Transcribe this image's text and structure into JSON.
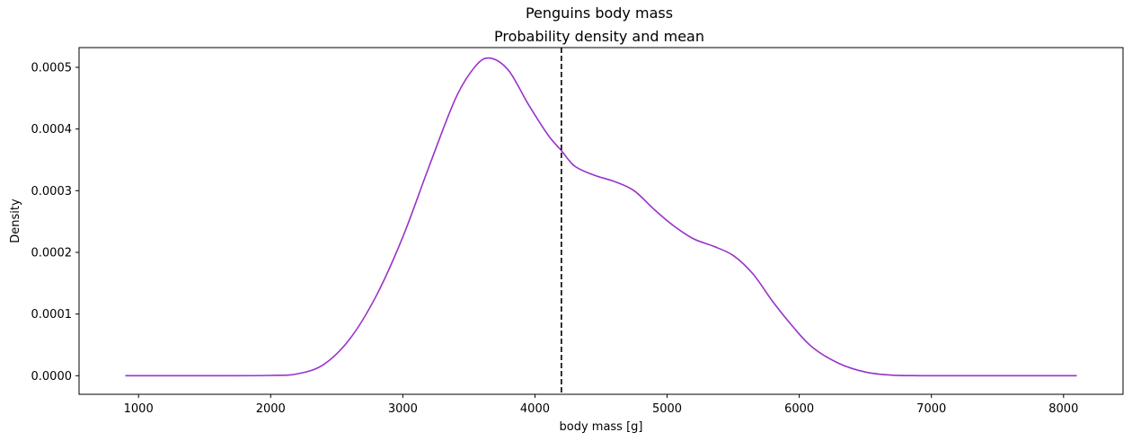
{
  "chart_data": {
    "type": "line",
    "title": "Penguins body mass",
    "subtitle": "Probability density and mean",
    "xlabel": "body mass [g]",
    "ylabel": "Density",
    "xlim": [
      550,
      8450
    ],
    "ylim": [
      -3.01e-05,
      0.000532
    ],
    "xticks": [
      1000,
      2000,
      3000,
      4000,
      5000,
      6000,
      7000,
      8000
    ],
    "xtick_labels": [
      "1000",
      "2000",
      "3000",
      "4000",
      "5000",
      "6000",
      "7000",
      "8000"
    ],
    "yticks": [
      0,
      0.0001,
      0.0002,
      0.0003,
      0.0004,
      0.0005
    ],
    "ytick_labels": [
      "0.0000",
      "0.0001",
      "0.0002",
      "0.0003",
      "0.0004",
      "0.0005"
    ],
    "grid": false,
    "colors": {
      "density": "#9932cc",
      "mean": "#000000"
    },
    "series": [
      {
        "style": "solid",
        "x": [
          900,
          1500,
          2000,
          2200,
          2400,
          2600,
          2800,
          3000,
          3200,
          3400,
          3550,
          3660,
          3800,
          3950,
          4100,
          4200,
          4300,
          4450,
          4600,
          4750,
          4900,
          5050,
          5200,
          5350,
          5500,
          5650,
          5800,
          5950,
          6100,
          6300,
          6500,
          6700,
          7000,
          7500,
          8100
        ],
        "y": [
          0,
          0,
          5e-07,
          3e-06,
          1.8e-05,
          6e-05,
          0.00013,
          0.000225,
          0.00034,
          0.00045,
          0.000502,
          0.000515,
          0.000495,
          0.00044,
          0.00039,
          0.000365,
          0.00034,
          0.000325,
          0.000315,
          0.0003,
          0.00027,
          0.000243,
          0.000222,
          0.00021,
          0.000195,
          0.000165,
          0.00012,
          8e-05,
          4.6e-05,
          2e-05,
          6e-06,
          1e-06,
          0,
          0,
          0
        ]
      }
    ],
    "mean_line": {
      "x": 4200,
      "style": "dashed"
    }
  }
}
